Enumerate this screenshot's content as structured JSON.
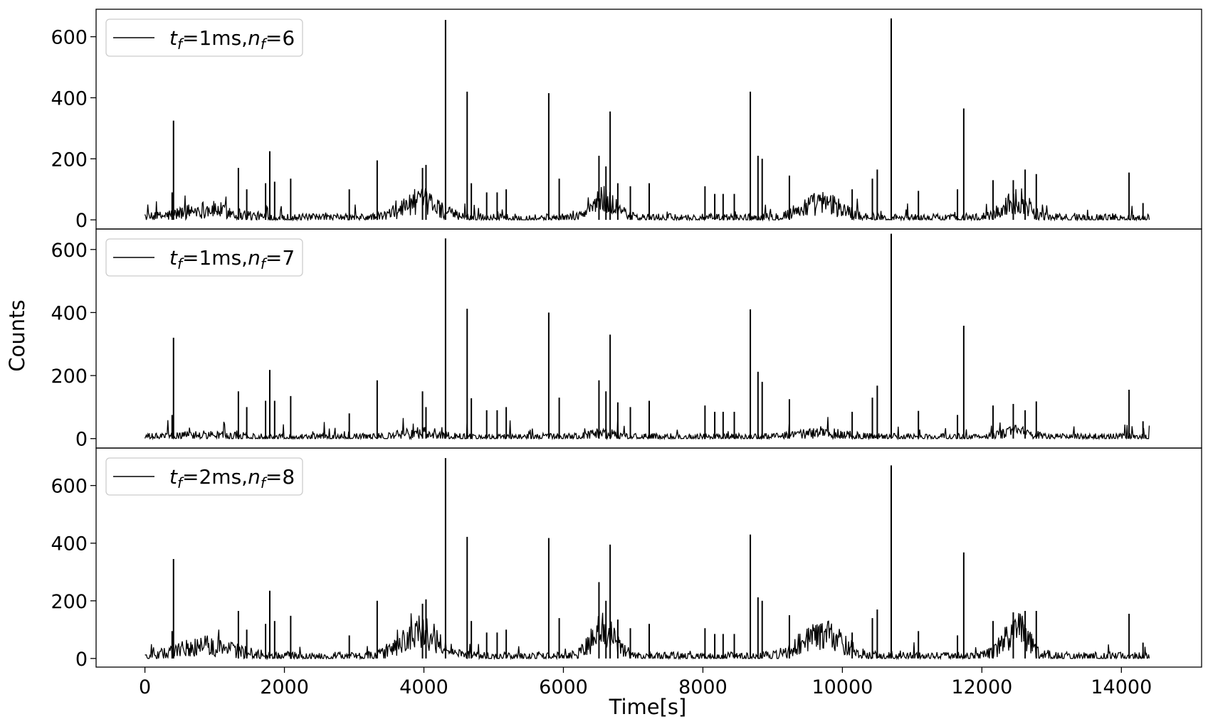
{
  "figure": {
    "ylabel": "Counts",
    "xlabel": "Time[s]",
    "line_color": "#000000",
    "background": "#ffffff"
  },
  "chart_data": [
    {
      "type": "line",
      "legend": {
        "prefix": "t",
        "sub1": "f",
        "mid": "=1ms,",
        "n": "n",
        "sub2": "f",
        "suffix": "=6",
        "placement": "upper-left"
      },
      "x_range": [
        0,
        14400
      ],
      "xlim": [
        -700,
        15150
      ],
      "ylim": [
        -30,
        690
      ],
      "yticks": [
        0,
        200,
        400,
        600
      ],
      "baseline": {
        "mean": 12,
        "amp": 14
      },
      "bumps": [
        {
          "center": 900,
          "width": 380,
          "height": 28
        },
        {
          "center": 3950,
          "width": 260,
          "height": 55
        },
        {
          "center": 6580,
          "width": 170,
          "height": 60
        },
        {
          "center": 9700,
          "width": 300,
          "height": 48
        },
        {
          "center": 12500,
          "width": 190,
          "height": 55
        }
      ],
      "spikes": [
        {
          "x": 410,
          "y": 325
        },
        {
          "x": 390,
          "y": 90
        },
        {
          "x": 1340,
          "y": 170
        },
        {
          "x": 1460,
          "y": 100
        },
        {
          "x": 1730,
          "y": 120
        },
        {
          "x": 1790,
          "y": 225
        },
        {
          "x": 1860,
          "y": 125
        },
        {
          "x": 2090,
          "y": 135
        },
        {
          "x": 2930,
          "y": 100
        },
        {
          "x": 3330,
          "y": 195
        },
        {
          "x": 3980,
          "y": 170
        },
        {
          "x": 4030,
          "y": 180
        },
        {
          "x": 4310,
          "y": 655
        },
        {
          "x": 4620,
          "y": 420
        },
        {
          "x": 4680,
          "y": 120
        },
        {
          "x": 4900,
          "y": 90
        },
        {
          "x": 5050,
          "y": 90
        },
        {
          "x": 5180,
          "y": 100
        },
        {
          "x": 5790,
          "y": 415
        },
        {
          "x": 5940,
          "y": 135
        },
        {
          "x": 6510,
          "y": 210
        },
        {
          "x": 6610,
          "y": 175
        },
        {
          "x": 6670,
          "y": 355
        },
        {
          "x": 6780,
          "y": 120
        },
        {
          "x": 6960,
          "y": 110
        },
        {
          "x": 7230,
          "y": 120
        },
        {
          "x": 8030,
          "y": 110
        },
        {
          "x": 8170,
          "y": 85
        },
        {
          "x": 8290,
          "y": 85
        },
        {
          "x": 8450,
          "y": 85
        },
        {
          "x": 8680,
          "y": 420
        },
        {
          "x": 8790,
          "y": 210
        },
        {
          "x": 8850,
          "y": 200
        },
        {
          "x": 9240,
          "y": 145
        },
        {
          "x": 10140,
          "y": 100
        },
        {
          "x": 10430,
          "y": 135
        },
        {
          "x": 10500,
          "y": 165
        },
        {
          "x": 10700,
          "y": 660
        },
        {
          "x": 11090,
          "y": 95
        },
        {
          "x": 11740,
          "y": 365
        },
        {
          "x": 11650,
          "y": 100
        },
        {
          "x": 12160,
          "y": 130
        },
        {
          "x": 12450,
          "y": 130
        },
        {
          "x": 12620,
          "y": 165
        },
        {
          "x": 12780,
          "y": 150
        },
        {
          "x": 14110,
          "y": 155
        },
        {
          "x": 14310,
          "y": 55
        }
      ]
    },
    {
      "type": "line",
      "legend": {
        "prefix": "t",
        "sub1": "f",
        "mid": "=1ms,",
        "n": "n",
        "sub2": "f",
        "suffix": "=7",
        "placement": "upper-left"
      },
      "x_range": [
        0,
        14400
      ],
      "xlim": [
        -700,
        15150
      ],
      "ylim": [
        -30,
        665
      ],
      "yticks": [
        0,
        200,
        400,
        600
      ],
      "baseline": {
        "mean": 9,
        "amp": 12
      },
      "bumps": [
        {
          "center": 900,
          "width": 380,
          "height": 6
        },
        {
          "center": 3950,
          "width": 260,
          "height": 14
        },
        {
          "center": 6580,
          "width": 170,
          "height": 12
        },
        {
          "center": 9700,
          "width": 300,
          "height": 14
        },
        {
          "center": 12500,
          "width": 190,
          "height": 18
        }
      ],
      "spikes": [
        {
          "x": 410,
          "y": 320
        },
        {
          "x": 390,
          "y": 75
        },
        {
          "x": 1340,
          "y": 150
        },
        {
          "x": 1460,
          "y": 100
        },
        {
          "x": 1730,
          "y": 120
        },
        {
          "x": 1790,
          "y": 218
        },
        {
          "x": 1860,
          "y": 120
        },
        {
          "x": 2090,
          "y": 135
        },
        {
          "x": 2930,
          "y": 80
        },
        {
          "x": 3330,
          "y": 185
        },
        {
          "x": 3980,
          "y": 150
        },
        {
          "x": 4030,
          "y": 100
        },
        {
          "x": 4310,
          "y": 635
        },
        {
          "x": 4620,
          "y": 412
        },
        {
          "x": 4680,
          "y": 128
        },
        {
          "x": 4900,
          "y": 90
        },
        {
          "x": 5050,
          "y": 90
        },
        {
          "x": 5180,
          "y": 100
        },
        {
          "x": 5790,
          "y": 400
        },
        {
          "x": 5940,
          "y": 130
        },
        {
          "x": 6510,
          "y": 185
        },
        {
          "x": 6610,
          "y": 150
        },
        {
          "x": 6670,
          "y": 330
        },
        {
          "x": 6780,
          "y": 115
        },
        {
          "x": 6960,
          "y": 100
        },
        {
          "x": 7230,
          "y": 120
        },
        {
          "x": 8030,
          "y": 105
        },
        {
          "x": 8170,
          "y": 85
        },
        {
          "x": 8290,
          "y": 85
        },
        {
          "x": 8450,
          "y": 85
        },
        {
          "x": 8680,
          "y": 410
        },
        {
          "x": 8790,
          "y": 212
        },
        {
          "x": 8850,
          "y": 180
        },
        {
          "x": 9240,
          "y": 125
        },
        {
          "x": 10140,
          "y": 85
        },
        {
          "x": 10430,
          "y": 130
        },
        {
          "x": 10500,
          "y": 168
        },
        {
          "x": 10700,
          "y": 650
        },
        {
          "x": 11090,
          "y": 88
        },
        {
          "x": 11740,
          "y": 358
        },
        {
          "x": 11650,
          "y": 75
        },
        {
          "x": 12160,
          "y": 105
        },
        {
          "x": 12450,
          "y": 110
        },
        {
          "x": 12620,
          "y": 90
        },
        {
          "x": 12780,
          "y": 118
        },
        {
          "x": 14110,
          "y": 155
        },
        {
          "x": 14310,
          "y": 55
        }
      ]
    },
    {
      "type": "line",
      "legend": {
        "prefix": "t",
        "sub1": "f",
        "mid": "=2ms,",
        "n": "n",
        "sub2": "f",
        "suffix": "=8",
        "placement": "upper-left"
      },
      "x_range": [
        0,
        14400
      ],
      "xlim": [
        -700,
        15150
      ],
      "ylim": [
        -30,
        730
      ],
      "yticks": [
        0,
        200,
        400,
        600
      ],
      "baseline": {
        "mean": 13,
        "amp": 16
      },
      "bumps": [
        {
          "center": 900,
          "width": 380,
          "height": 38
        },
        {
          "center": 3950,
          "width": 260,
          "height": 85
        },
        {
          "center": 6580,
          "width": 170,
          "height": 95
        },
        {
          "center": 9700,
          "width": 300,
          "height": 75
        },
        {
          "center": 12500,
          "width": 190,
          "height": 90
        }
      ],
      "spikes": [
        {
          "x": 410,
          "y": 345
        },
        {
          "x": 390,
          "y": 95
        },
        {
          "x": 1340,
          "y": 165
        },
        {
          "x": 1460,
          "y": 100
        },
        {
          "x": 1730,
          "y": 120
        },
        {
          "x": 1790,
          "y": 235
        },
        {
          "x": 1860,
          "y": 130
        },
        {
          "x": 2090,
          "y": 148
        },
        {
          "x": 2930,
          "y": 80
        },
        {
          "x": 3330,
          "y": 200
        },
        {
          "x": 3980,
          "y": 190
        },
        {
          "x": 4030,
          "y": 205
        },
        {
          "x": 4310,
          "y": 695
        },
        {
          "x": 4620,
          "y": 422
        },
        {
          "x": 4680,
          "y": 130
        },
        {
          "x": 4900,
          "y": 90
        },
        {
          "x": 5050,
          "y": 90
        },
        {
          "x": 5180,
          "y": 100
        },
        {
          "x": 5790,
          "y": 418
        },
        {
          "x": 5940,
          "y": 140
        },
        {
          "x": 6510,
          "y": 265
        },
        {
          "x": 6610,
          "y": 200
        },
        {
          "x": 6670,
          "y": 395
        },
        {
          "x": 6780,
          "y": 135
        },
        {
          "x": 6960,
          "y": 105
        },
        {
          "x": 7230,
          "y": 120
        },
        {
          "x": 8030,
          "y": 105
        },
        {
          "x": 8170,
          "y": 85
        },
        {
          "x": 8290,
          "y": 85
        },
        {
          "x": 8450,
          "y": 85
        },
        {
          "x": 8680,
          "y": 430
        },
        {
          "x": 8790,
          "y": 212
        },
        {
          "x": 8850,
          "y": 200
        },
        {
          "x": 9240,
          "y": 150
        },
        {
          "x": 10140,
          "y": 90
        },
        {
          "x": 10430,
          "y": 140
        },
        {
          "x": 10500,
          "y": 170
        },
        {
          "x": 10700,
          "y": 670
        },
        {
          "x": 11090,
          "y": 95
        },
        {
          "x": 11740,
          "y": 368
        },
        {
          "x": 11650,
          "y": 80
        },
        {
          "x": 12160,
          "y": 130
        },
        {
          "x": 12450,
          "y": 160
        },
        {
          "x": 12620,
          "y": 165
        },
        {
          "x": 12780,
          "y": 165
        },
        {
          "x": 14110,
          "y": 155
        },
        {
          "x": 14310,
          "y": 55
        }
      ]
    }
  ],
  "x_axis": {
    "ticks": [
      0,
      2000,
      4000,
      6000,
      8000,
      10000,
      12000,
      14000
    ],
    "tick_labels": [
      "0",
      "2000",
      "4000",
      "6000",
      "8000",
      "10000",
      "12000",
      "14000"
    ]
  },
  "y_tick_labels": [
    "0",
    "200",
    "400",
    "600"
  ]
}
